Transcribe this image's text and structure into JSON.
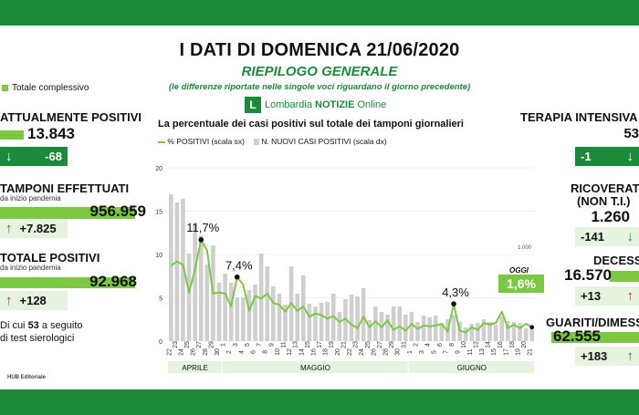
{
  "header": {
    "title": "I DATI DI DOMENICA 21/06/2020",
    "subtitle": "RIEPILOGO GENERALE",
    "note": "(le differenze riportate nelle singole voci riguardano il giorno precedente)",
    "brand_logo": "L",
    "brand_name": "Lombardia ",
    "brand_bold": "NOTIZIE",
    "brand_suffix": " Online"
  },
  "legend_totals": "Totale complessivo",
  "left": {
    "attualmente_positivi": {
      "label": "ATTUALMENTE POSITIVI",
      "value": "13.843",
      "delta": "-68"
    },
    "tamponi": {
      "label": "TAMPONI EFFETTUATI",
      "sub": "da inizio pandemia",
      "value": "956.959",
      "delta": "+7.825"
    },
    "totale_positivi": {
      "label": "TOTALE POSITIVI",
      "sub": "da inizio pandemia",
      "value": "92.968",
      "delta": "+128"
    },
    "sierologici": {
      "pre": "Di cui ",
      "num": "53",
      "post": " a seguito",
      "line2": "di test sierologici"
    }
  },
  "right": {
    "terapia": {
      "label": "TERAPIA INTENSIVA",
      "value": "53",
      "delta": "-1"
    },
    "ricoverati": {
      "label": "RICOVERATI",
      "sub": "(NON T.I.)",
      "value": "1.260",
      "delta": "-141"
    },
    "decessi": {
      "label": "DECESSI",
      "value": "16.570",
      "delta": "+13"
    },
    "guariti": {
      "label": "GUARITI/DIMESSI",
      "value": "62.555",
      "delta": "+183"
    }
  },
  "chart_text": {
    "title": "La percentuale dei casi positivi sul totale dei tamponi giornalieri",
    "legend_line": "% POSITIVI (scala sx)",
    "legend_bar": "N. NUOVI CASI POSITIVI (scala dx)",
    "oggi_label": "OGGI",
    "oggi_value": "1,6%"
  },
  "footer": "HUB Editoriale",
  "colors": {
    "dark_green": "#1b8a3a",
    "light_green": "#7dc843",
    "bar_grey": "#cfcfcf",
    "red": "#c62828"
  },
  "chart_data": {
    "type": "bar",
    "x_dates": [
      "22/04",
      "23/04",
      "24/04",
      "25/04",
      "26/04",
      "27/04",
      "28/04",
      "29/04",
      "30/04",
      "01/05",
      "02/05",
      "03/05",
      "04/05",
      "05/05",
      "06/05",
      "07/05",
      "08/05",
      "09/05",
      "10/05",
      "11/05",
      "12/05",
      "13/05",
      "14/05",
      "15/05",
      "16/05",
      "17/05",
      "18/05",
      "19/05",
      "20/05",
      "21/05",
      "22/05",
      "23/05",
      "24/05",
      "25/05",
      "26/05",
      "27/05",
      "28/05",
      "29/05",
      "30/05",
      "31/05",
      "01/06",
      "02/06",
      "03/06",
      "04/06",
      "05/06",
      "06/06",
      "07/06",
      "08/06",
      "09/06",
      "10/06",
      "11/06",
      "12/06",
      "13/06",
      "14/06",
      "15/06",
      "16/06",
      "17/06",
      "18/06",
      "19/06",
      "20/06",
      "21/06"
    ],
    "tick_labels": [
      "22",
      "23",
      "24",
      "25",
      "26",
      "27",
      "28",
      "29",
      "30",
      "1",
      "2",
      "3",
      "4",
      "5",
      "6",
      "7",
      "8",
      "9",
      "10",
      "11",
      "12",
      "13",
      "14",
      "15",
      "16",
      "17",
      "18",
      "19",
      "20",
      "21",
      "22",
      "23",
      "24",
      "25",
      "26",
      "27",
      "28",
      "29",
      "30",
      "31",
      "1",
      "2",
      "3",
      "4",
      "5",
      "6",
      "7",
      "8",
      "9",
      "10",
      "11",
      "12",
      "13",
      "14",
      "15",
      "16",
      "17",
      "18",
      "19",
      "20",
      "21"
    ],
    "months": [
      {
        "label": "APRILE",
        "from": 0,
        "to": 8
      },
      {
        "label": "MAGGIO",
        "from": 9,
        "to": 39
      },
      {
        "label": "GIUGNO",
        "from": 40,
        "to": 60
      }
    ],
    "y_left": {
      "ticks": [
        0,
        5,
        10,
        15,
        20
      ],
      "lim": [
        0,
        20
      ],
      "unit": "%"
    },
    "y_right": {
      "ticks": [
        1000
      ],
      "tick_labels": [
        "1.000"
      ],
      "lim": [
        0,
        1900
      ]
    },
    "series": [
      {
        "name": "% POSITIVI (scala sx)",
        "type": "line",
        "axis": "left",
        "values": [
          8.7,
          9.2,
          8.8,
          5.6,
          8.3,
          11.7,
          10.5,
          5.5,
          5.6,
          5.5,
          4.0,
          7.4,
          6.5,
          3.5,
          5.2,
          4.9,
          5.5,
          4.4,
          4.2,
          3.4,
          4.4,
          3.5,
          4.0,
          2.8,
          3.2,
          3.0,
          2.6,
          2.9,
          2.2,
          2.6,
          1.9,
          1.5,
          2.8,
          1.6,
          2.3,
          1.6,
          2.4,
          1.3,
          1.7,
          1.2,
          2.0,
          1.4,
          1.8,
          1.7,
          1.8,
          2.0,
          1.1,
          4.3,
          1.2,
          1.0,
          1.6,
          1.3,
          2.1,
          1.9,
          2.1,
          3.4,
          1.5,
          1.9,
          1.5,
          2.0,
          1.6
        ]
      },
      {
        "name": "N. NUOVI CASI POSITIVI (scala dx)",
        "type": "bar",
        "axis": "right",
        "values": [
          1610,
          1520,
          1560,
          960,
          1300,
          1160,
          840,
          1050,
          640,
          740,
          640,
          480,
          480,
          560,
          620,
          960,
          820,
          600,
          520,
          400,
          820,
          520,
          720,
          410,
          380,
          420,
          430,
          520,
          320,
          460,
          510,
          490,
          580,
          230,
          380,
          320,
          290,
          380,
          380,
          290,
          320,
          210,
          280,
          260,
          280,
          190,
          240,
          290,
          210,
          150,
          190,
          200,
          240,
          210,
          180,
          270,
          220,
          210,
          200,
          140,
          128
        ]
      }
    ],
    "annotations": [
      {
        "x": "27/04",
        "text": "11,7%"
      },
      {
        "x": "03/05",
        "text": "7,4%"
      },
      {
        "x": "08/06",
        "text": "4,3%"
      },
      {
        "x": "21/06",
        "text": "OGGI 1,6%"
      }
    ]
  }
}
